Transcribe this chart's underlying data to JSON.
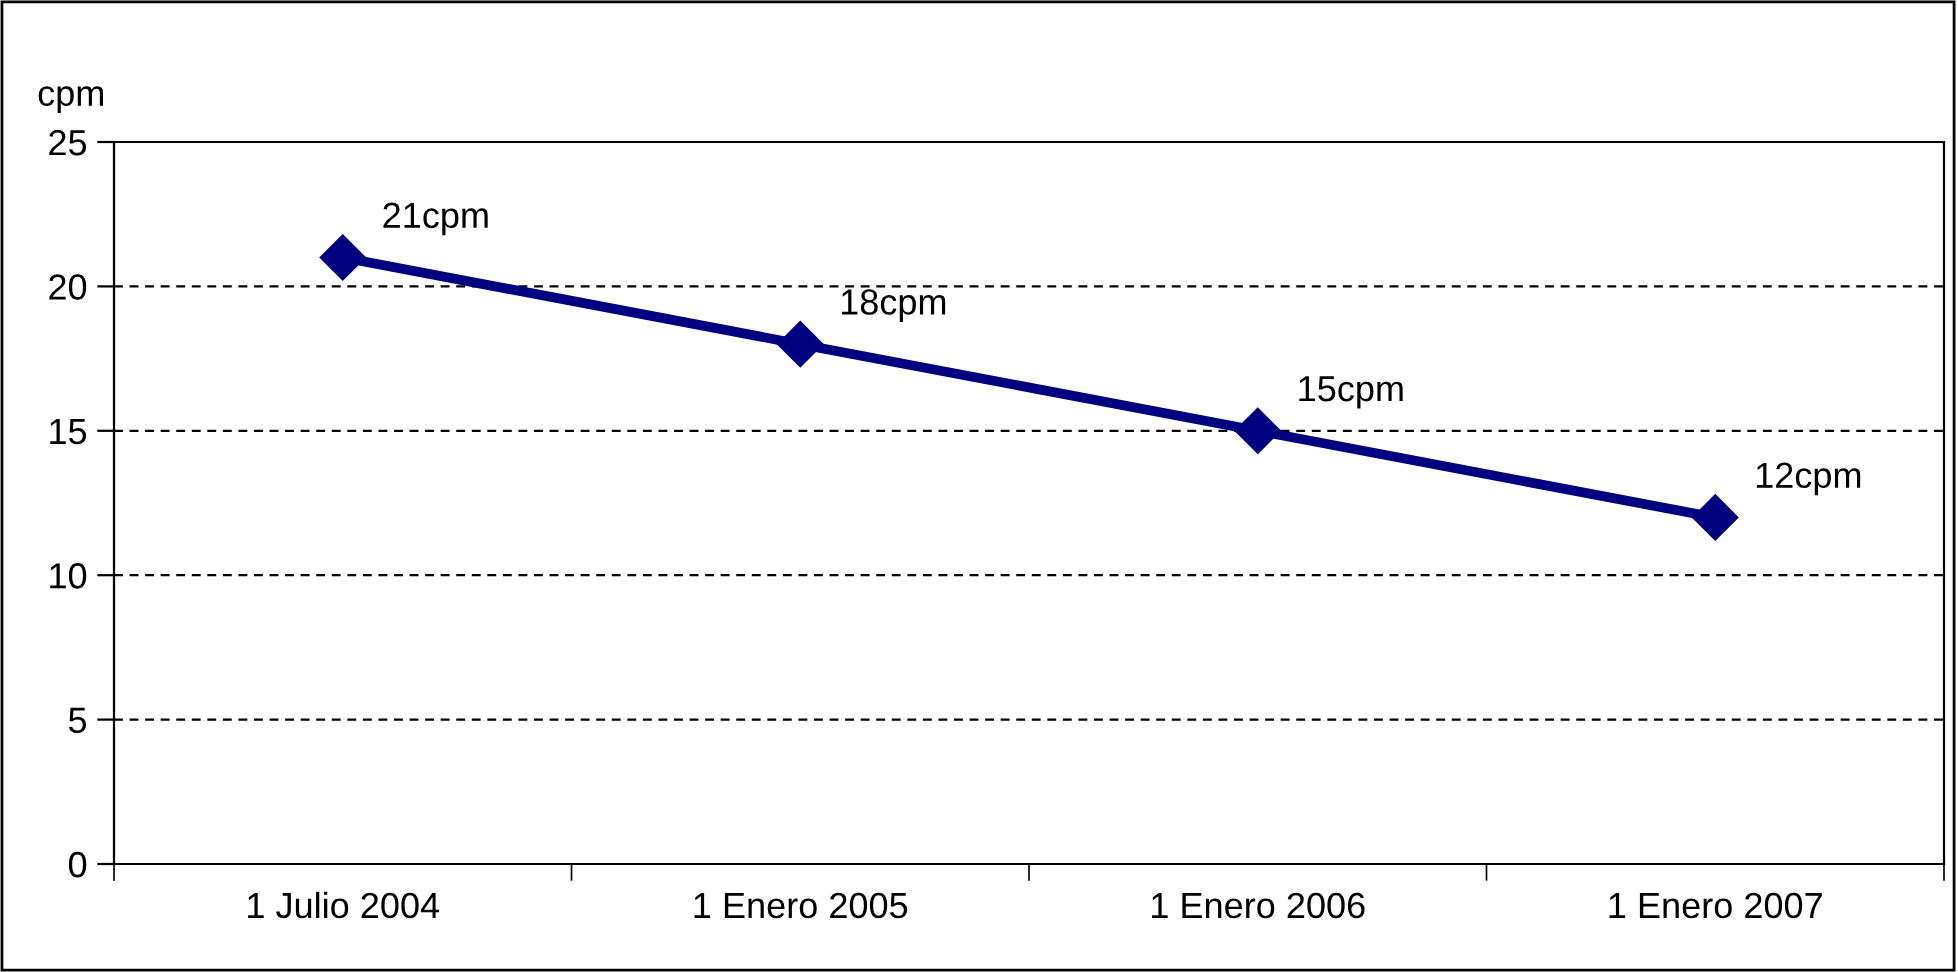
{
  "chart_data": {
    "type": "line",
    "ylabel": "cpm",
    "categories": [
      "1 Julio 2004",
      "1 Enero 2005",
      "1 Enero 2006",
      "1 Enero 2007"
    ],
    "series": [
      {
        "color": "#000080",
        "values": [
          21,
          18,
          15,
          12
        ],
        "value_labels": [
          "21cpm",
          "18cpm",
          "15cpm",
          "12cpm"
        ]
      }
    ],
    "ylim": [
      0,
      25
    ],
    "yticks": [
      0,
      5,
      10,
      15,
      20,
      25
    ],
    "grid": "y",
    "marker": "diamond",
    "line_style": "solid",
    "legend": false
  }
}
